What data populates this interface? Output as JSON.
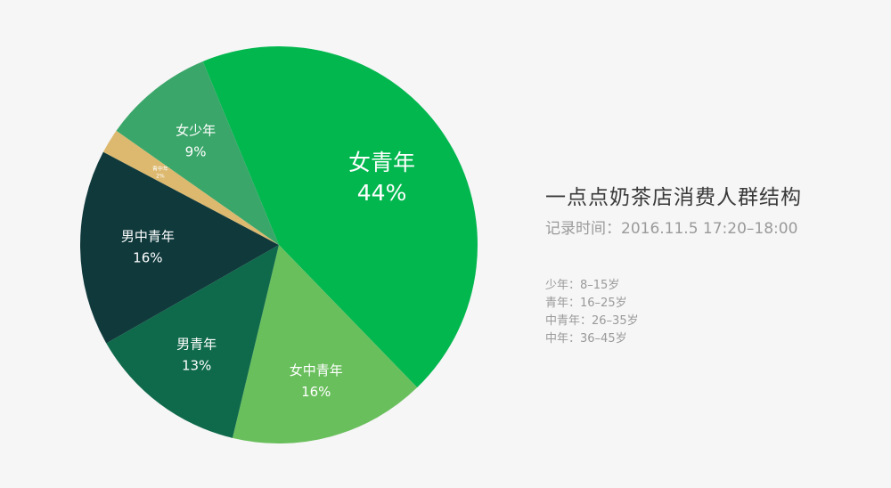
{
  "chart_data": {
    "type": "pie",
    "title": "一点点奶茶店消费人群结构",
    "subtitle": "记录时间：2016.11.5 17:20–18:00",
    "slices": [
      {
        "label": "女青年",
        "value_text": "44%",
        "value": 44,
        "color": "#03b74f"
      },
      {
        "label": "女中青年",
        "value_text": "16%",
        "value": 16,
        "color": "#6abf5d"
      },
      {
        "label": "男青年",
        "value_text": "13%",
        "value": 13,
        "color": "#0f6a4b"
      },
      {
        "label": "男中青年",
        "value_text": "16%",
        "value": 16,
        "color": "#10393c"
      },
      {
        "label": "青中年",
        "value_text": "2%",
        "value": 2,
        "color": "#dcb96f"
      },
      {
        "label": "女少年",
        "value_text": "9%",
        "value": 9,
        "color": "#3ba66a"
      }
    ]
  },
  "notes": [
    "少年：8–15岁",
    "青年：16–25岁",
    "中青年：26–35岁",
    "中年：36–45岁"
  ]
}
